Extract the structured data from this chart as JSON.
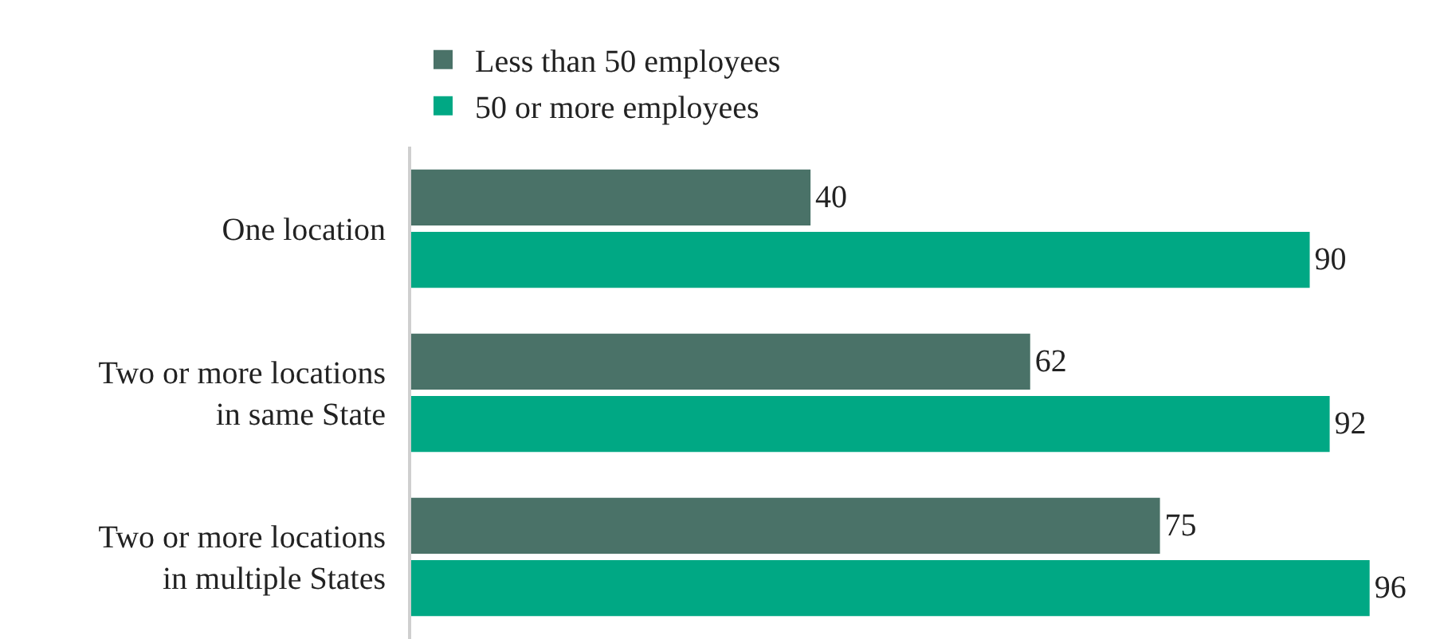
{
  "chart_data": {
    "type": "bar",
    "orientation": "horizontal",
    "categories": [
      "One location",
      "Two or more locations in same State",
      "Two or more locations in multiple States"
    ],
    "series": [
      {
        "name": "Less than 50 employees",
        "color": "#4a7268",
        "values": [
          40,
          62,
          75
        ]
      },
      {
        "name": "50 or more employees",
        "color": "#00a884",
        "values": [
          90,
          92,
          96
        ]
      }
    ],
    "data_labels": true,
    "legend": "top left",
    "grid": false
  }
}
